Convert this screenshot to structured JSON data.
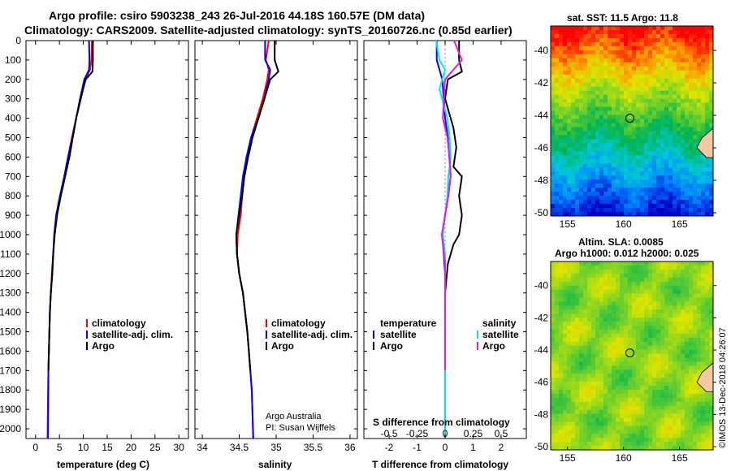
{
  "title_line1": "Argo profile: csiro 5903238_243 26-Jul-2016 44.18S 160.57E (DM data)",
  "title_line2": "Climatology: CARS2009. Satellite-adjusted climatology: synTS_20160726.nc (0.85d earlier)",
  "credit": "Argo Australia",
  "pi": "PI: Susan Wijffels",
  "stamp": "©IMOS 13-Dec-2018 04:26:07",
  "colors": {
    "argo": "#000000",
    "clim": "#ff0000",
    "satclim": "#0000ff",
    "sat_s": "#00e5e5",
    "argo_s": "#e020e0"
  },
  "chart_data": [
    {
      "type": "line",
      "xlabel": "temperature (deg C)",
      "xticks": [
        "0",
        "5",
        "10",
        "15",
        "20",
        "25",
        "30"
      ],
      "xlim": [
        -2,
        32
      ],
      "ylim": [
        0,
        2050
      ],
      "yticks": [
        "0",
        "100",
        "200",
        "300",
        "400",
        "500",
        "600",
        "700",
        "800",
        "900",
        "1000",
        "1100",
        "1200",
        "1300",
        "1400",
        "1500",
        "1600",
        "1700",
        "1800",
        "1900",
        "2000"
      ],
      "legend": [
        "climatology",
        "satellite-adj. clim.",
        "Argo"
      ],
      "series": [
        {
          "name": "climatology",
          "color": "#ff0000",
          "x": [
            11.8,
            11.7,
            11.4,
            10.4,
            9.5,
            8.5,
            7.6,
            6.8,
            6.0,
            5.2,
            4.5,
            4.0,
            3.7,
            3.4,
            3.2,
            3.0,
            2.9,
            2.8,
            2.7,
            2.6,
            2.5
          ],
          "y": [
            0,
            100,
            150,
            200,
            300,
            400,
            500,
            600,
            700,
            800,
            900,
            1000,
            1100,
            1200,
            1300,
            1400,
            1500,
            1600,
            1700,
            1800,
            2050
          ]
        },
        {
          "name": "satellite-adj. clim.",
          "color": "#0000ff",
          "x": [
            11.2,
            11.3,
            11.2,
            10.2,
            9.3,
            8.5,
            7.7,
            6.8,
            6.0,
            5.1,
            4.3,
            3.9,
            3.7,
            3.5,
            3.2,
            3.0,
            2.9,
            2.8,
            2.7,
            2.7,
            2.6
          ],
          "y": [
            0,
            100,
            150,
            200,
            300,
            400,
            500,
            600,
            700,
            800,
            900,
            1000,
            1100,
            1200,
            1300,
            1400,
            1500,
            1600,
            1700,
            1800,
            2050
          ]
        },
        {
          "name": "Argo",
          "color": "#000000",
          "x": [
            12.0,
            12.0,
            11.9,
            10.5,
            9.4,
            8.5,
            7.8,
            7.1,
            6.2,
            5.3,
            4.5,
            4.0,
            3.7,
            3.5,
            3.2,
            3.0,
            2.9,
            2.8,
            2.7
          ],
          "y": [
            0,
            100,
            160,
            200,
            300,
            400,
            500,
            600,
            700,
            800,
            900,
            1000,
            1100,
            1200,
            1300,
            1400,
            1500,
            1600,
            1700
          ]
        }
      ]
    },
    {
      "type": "line",
      "xlabel": "salinity",
      "xticks": [
        "34",
        "34.5",
        "35",
        "35.5",
        "36"
      ],
      "xlim": [
        33.9,
        36.1
      ],
      "ylim": [
        0,
        2050
      ],
      "legend": [
        "climatology",
        "satellite-adj. clim.",
        "Argo"
      ],
      "series": [
        {
          "name": "climatology",
          "color": "#ff0000",
          "x": [
            34.9,
            34.86,
            34.9,
            34.88,
            34.82,
            34.74,
            34.66,
            34.6,
            34.56,
            34.54,
            34.52,
            34.48,
            34.47,
            34.5,
            34.55,
            34.58,
            34.61,
            34.63,
            34.65,
            34.67,
            34.69
          ],
          "y": [
            0,
            100,
            150,
            200,
            300,
            400,
            500,
            600,
            700,
            800,
            900,
            1000,
            1100,
            1200,
            1300,
            1400,
            1500,
            1600,
            1700,
            1800,
            2050
          ]
        },
        {
          "name": "satellite-adj. clim.",
          "color": "#0000ff",
          "x": [
            34.85,
            34.85,
            34.92,
            34.9,
            34.84,
            34.76,
            34.66,
            34.6,
            34.55,
            34.52,
            34.49,
            34.46,
            34.47,
            34.5,
            34.55,
            34.58,
            34.61,
            34.63,
            34.65,
            34.67,
            34.69
          ],
          "y": [
            0,
            100,
            150,
            200,
            300,
            400,
            500,
            600,
            700,
            800,
            900,
            1000,
            1100,
            1200,
            1300,
            1400,
            1500,
            1600,
            1700,
            1800,
            2050
          ]
        },
        {
          "name": "Argo",
          "color": "#000000",
          "x": [
            34.98,
            34.98,
            35.03,
            34.92,
            34.84,
            34.76,
            34.68,
            34.62,
            34.57,
            34.54,
            34.5,
            34.46,
            34.47,
            34.5,
            34.55,
            34.58,
            34.61,
            34.63,
            34.65
          ],
          "y": [
            0,
            100,
            160,
            200,
            300,
            400,
            500,
            600,
            700,
            800,
            900,
            1000,
            1100,
            1200,
            1300,
            1400,
            1500,
            1600,
            1700
          ]
        }
      ]
    },
    {
      "type": "line",
      "xlabel": "T difference from climatology",
      "xlabel_top": "S difference from climatology",
      "xticks": [
        "-2",
        "-1",
        "0",
        "1",
        "2"
      ],
      "xticks_top": [
        "-0.5",
        "-0.25",
        "0",
        "0.25",
        "0.5"
      ],
      "xlim": [
        -2.9,
        2.9
      ],
      "ylim": [
        0,
        2050
      ],
      "legend_temperature": {
        "heading": "temperature",
        "items": [
          "satellite",
          "Argo"
        ]
      },
      "legend_salinity": {
        "heading": "salinity",
        "items": [
          "satellite",
          "Argo"
        ]
      },
      "series": [
        {
          "name": "satellite T",
          "color": "#0000ff",
          "x": [
            -0.3,
            -0.3,
            -0.2,
            -0.1,
            -0.05,
            0.0,
            0.1,
            0.15,
            0.2,
            0.1,
            0.0,
            -0.1,
            -0.05,
            0.0,
            0.0,
            0.0,
            0.0,
            0.0,
            0.0
          ],
          "y": [
            0,
            100,
            150,
            200,
            300,
            400,
            500,
            600,
            700,
            800,
            900,
            1000,
            1100,
            1200,
            1300,
            1400,
            1500,
            1600,
            2050
          ]
        },
        {
          "name": "Argo T",
          "color": "#000000",
          "x": [
            0.5,
            0.5,
            0.6,
            0.1,
            0.0,
            0.3,
            0.4,
            0.3,
            0.6,
            0.5,
            0.6,
            0.5,
            0.3,
            0.1,
            0.0,
            0.0,
            0.0,
            0.0
          ],
          "y": [
            0,
            100,
            160,
            200,
            300,
            450,
            550,
            650,
            700,
            800,
            900,
            1000,
            1050,
            1150,
            1300,
            1400,
            1600,
            1700
          ]
        },
        {
          "name": "satellite S",
          "color": "#00e5e5",
          "x": [
            -0.08,
            -0.05,
            0.0,
            -0.05,
            0.02,
            0.04,
            0.05,
            0.03,
            0.02,
            0.0,
            -0.02,
            0.0,
            0.0,
            0.0,
            0.0,
            0.0
          ],
          "y": [
            0,
            100,
            150,
            250,
            400,
            500,
            600,
            700,
            800,
            900,
            1000,
            1100,
            1300,
            1500,
            1700,
            2050
          ]
        },
        {
          "name": "Argo S",
          "color": "#e020e0",
          "x": [
            0.08,
            0.15,
            0.06,
            0.0,
            -0.02,
            0.02,
            0.04,
            0.05,
            0.03,
            0.0,
            -0.03,
            0.0,
            0.0,
            0.0
          ],
          "y": [
            0,
            100,
            160,
            200,
            400,
            500,
            600,
            700,
            800,
            900,
            1000,
            1150,
            1400,
            1700
          ]
        }
      ]
    },
    {
      "type": "heatmap",
      "title": "sat. SST: 11.5 Argo: 11.8",
      "xticks": [
        "155",
        "160",
        "165"
      ],
      "yticks": [
        "-40",
        "-42",
        "-44",
        "-46",
        "-48",
        "-50"
      ],
      "xlim": [
        153.5,
        168
      ],
      "ylim": [
        -50.2,
        -38.5
      ],
      "marker": {
        "lon": 160.57,
        "lat": -44.18
      }
    },
    {
      "type": "heatmap",
      "title": "Altim. SLA: 0.0085",
      "subtitle": "Argo h1000: 0.012 h2000: 0.025",
      "xticks": [
        "155",
        "160",
        "165"
      ],
      "yticks": [
        "-40",
        "-42",
        "-44",
        "-46",
        "-48",
        "-50"
      ],
      "xlim": [
        153.5,
        168
      ],
      "ylim": [
        -50.2,
        -38.5
      ],
      "marker": {
        "lon": 160.57,
        "lat": -44.18
      }
    }
  ]
}
